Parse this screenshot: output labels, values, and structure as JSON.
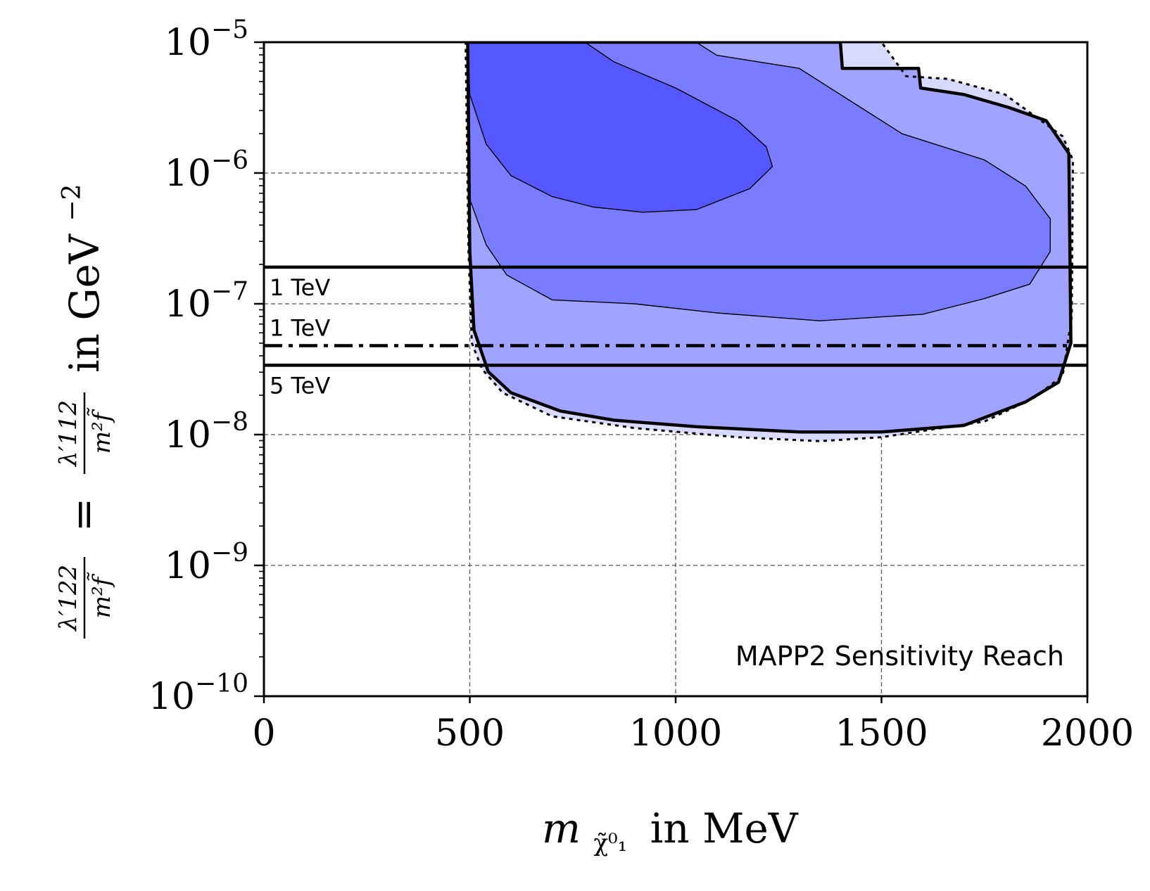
{
  "chart_data": {
    "type": "area",
    "title": "",
    "xlabel": "m in MeV",
    "xlabel_symbol": "m",
    "xlabel_subscript": "χ̃⁰₁",
    "xlabel_suffix": "in MeV",
    "ylabel": "λ'122/m²f̃ = λ'112/m²f̃ in GeV−2",
    "ylabel_parts": {
      "num_a": "λ′122",
      "den_a": "m²f̃",
      "eq": "=",
      "num_b": "λ′112",
      "den_b": "m²f̃",
      "unit": "in GeV",
      "unit_exp": "−2"
    },
    "xlim": [
      0,
      2000
    ],
    "ylim_log10": [
      -10,
      -5
    ],
    "xticks": [
      {
        "value": 0,
        "label": "0"
      },
      {
        "value": 500,
        "label": "500"
      },
      {
        "value": 1000,
        "label": "1000"
      },
      {
        "value": 1500,
        "label": "1500"
      },
      {
        "value": 2000,
        "label": "2000"
      }
    ],
    "yticks": [
      {
        "exp": -5,
        "base": "10",
        "sup": "−5"
      },
      {
        "exp": -6,
        "base": "10",
        "sup": "−6"
      },
      {
        "exp": -7,
        "base": "10",
        "sup": "−7"
      },
      {
        "exp": -8,
        "base": "10",
        "sup": "−8"
      },
      {
        "exp": -9,
        "base": "10",
        "sup": "−9"
      },
      {
        "exp": -10,
        "base": "10",
        "sup": "−10"
      }
    ],
    "grid": true,
    "annotation": "MAPP2 Sensitivity Reach",
    "colors": {
      "outer": "#d8d9ff",
      "region1": "#a0a3ff",
      "region2": "#7a7cff",
      "region3": "#5557ff",
      "lines": "#000000",
      "grid": "#555555"
    },
    "regions": [
      {
        "name": "outer-dotted",
        "points": [
          [
            490,
            -5
          ],
          [
            1500,
            -5
          ],
          [
            1560,
            -5.26
          ],
          [
            1660,
            -5.28
          ],
          [
            1800,
            -5.4
          ],
          [
            1940,
            -5.72
          ],
          [
            1965,
            -5.9
          ],
          [
            1962,
            -7.1
          ],
          [
            1940,
            -7.55
          ],
          [
            1870,
            -7.72
          ],
          [
            1750,
            -7.9
          ],
          [
            1500,
            -8.02
          ],
          [
            1350,
            -8.05
          ],
          [
            1150,
            -8.02
          ],
          [
            900,
            -7.95
          ],
          [
            700,
            -7.86
          ],
          [
            580,
            -7.68
          ],
          [
            530,
            -7.5
          ],
          [
            505,
            -7.3
          ],
          [
            497,
            -6.6
          ],
          [
            490,
            -5
          ]
        ]
      },
      {
        "name": "region-1",
        "points": [
          [
            495,
            -5
          ],
          [
            1400,
            -5
          ],
          [
            1405,
            -5.2
          ],
          [
            1590,
            -5.2
          ],
          [
            1595,
            -5.35
          ],
          [
            1700,
            -5.4
          ],
          [
            1810,
            -5.5
          ],
          [
            1900,
            -5.6
          ],
          [
            1955,
            -5.85
          ],
          [
            1960,
            -7.3
          ],
          [
            1930,
            -7.6
          ],
          [
            1850,
            -7.75
          ],
          [
            1700,
            -7.93
          ],
          [
            1500,
            -7.98
          ],
          [
            1300,
            -7.98
          ],
          [
            1050,
            -7.94
          ],
          [
            850,
            -7.89
          ],
          [
            720,
            -7.82
          ],
          [
            600,
            -7.68
          ],
          [
            545,
            -7.52
          ],
          [
            510,
            -7.2
          ],
          [
            500,
            -6.6
          ],
          [
            495,
            -5
          ]
        ]
      },
      {
        "name": "region-2",
        "points": [
          [
            495,
            -5
          ],
          [
            1050,
            -5
          ],
          [
            1100,
            -5.1
          ],
          [
            1300,
            -5.2
          ],
          [
            1450,
            -5.5
          ],
          [
            1550,
            -5.7
          ],
          [
            1750,
            -5.9
          ],
          [
            1850,
            -6.1
          ],
          [
            1910,
            -6.35
          ],
          [
            1910,
            -6.6
          ],
          [
            1860,
            -6.85
          ],
          [
            1750,
            -6.96
          ],
          [
            1600,
            -7.08
          ],
          [
            1350,
            -7.13
          ],
          [
            1100,
            -7.07
          ],
          [
            900,
            -7.0
          ],
          [
            700,
            -6.97
          ],
          [
            590,
            -6.78
          ],
          [
            540,
            -6.55
          ],
          [
            500,
            -6.2
          ],
          [
            495,
            -5
          ]
        ]
      },
      {
        "name": "region-3",
        "points": [
          [
            495,
            -5
          ],
          [
            780,
            -5
          ],
          [
            850,
            -5.15
          ],
          [
            1000,
            -5.35
          ],
          [
            1150,
            -5.6
          ],
          [
            1220,
            -5.8
          ],
          [
            1235,
            -5.95
          ],
          [
            1180,
            -6.12
          ],
          [
            1050,
            -6.28
          ],
          [
            920,
            -6.3
          ],
          [
            800,
            -6.26
          ],
          [
            700,
            -6.18
          ],
          [
            600,
            -6.02
          ],
          [
            540,
            -5.78
          ],
          [
            500,
            -5.4
          ],
          [
            495,
            -5
          ]
        ]
      }
    ],
    "boundary_solid": [
      [
        495,
        -5
      ],
      [
        1400,
        -5
      ],
      [
        1405,
        -5.2
      ],
      [
        1590,
        -5.2
      ],
      [
        1595,
        -5.35
      ],
      [
        1700,
        -5.4
      ],
      [
        1810,
        -5.5
      ],
      [
        1900,
        -5.6
      ],
      [
        1955,
        -5.85
      ],
      [
        1960,
        -7.3
      ],
      [
        1930,
        -7.6
      ],
      [
        1850,
        -7.75
      ],
      [
        1700,
        -7.93
      ],
      [
        1500,
        -7.98
      ],
      [
        1300,
        -7.98
      ],
      [
        1050,
        -7.94
      ],
      [
        850,
        -7.89
      ],
      [
        720,
        -7.82
      ],
      [
        600,
        -7.68
      ],
      [
        545,
        -7.52
      ],
      [
        510,
        -7.2
      ],
      [
        500,
        -6.6
      ],
      [
        495,
        -5
      ]
    ],
    "boundary_dotted": [
      [
        490,
        -5
      ],
      [
        1500,
        -5
      ],
      [
        1560,
        -5.26
      ],
      [
        1660,
        -5.28
      ],
      [
        1800,
        -5.4
      ],
      [
        1940,
        -5.72
      ],
      [
        1965,
        -5.9
      ],
      [
        1962,
        -7.1
      ],
      [
        1940,
        -7.55
      ],
      [
        1870,
        -7.72
      ],
      [
        1750,
        -7.9
      ],
      [
        1500,
        -8.02
      ],
      [
        1350,
        -8.05
      ],
      [
        1150,
        -8.02
      ],
      [
        900,
        -7.95
      ],
      [
        700,
        -7.86
      ],
      [
        580,
        -7.68
      ],
      [
        530,
        -7.5
      ],
      [
        505,
        -7.3
      ],
      [
        497,
        -6.6
      ],
      [
        490,
        -5
      ]
    ],
    "hlines": [
      {
        "name": "1-tev-solid",
        "y_log10": -6.72,
        "style": "solid",
        "label": "1 TeV",
        "label_position": "below-left"
      },
      {
        "name": "1-tev-dashdot",
        "y_log10": -7.32,
        "style": "dashdot",
        "label": "1 TeV",
        "label_position": "above-left"
      },
      {
        "name": "5-tev-solid",
        "y_log10": -7.47,
        "style": "solid",
        "label": "5 TeV",
        "label_position": "below-left"
      }
    ]
  }
}
